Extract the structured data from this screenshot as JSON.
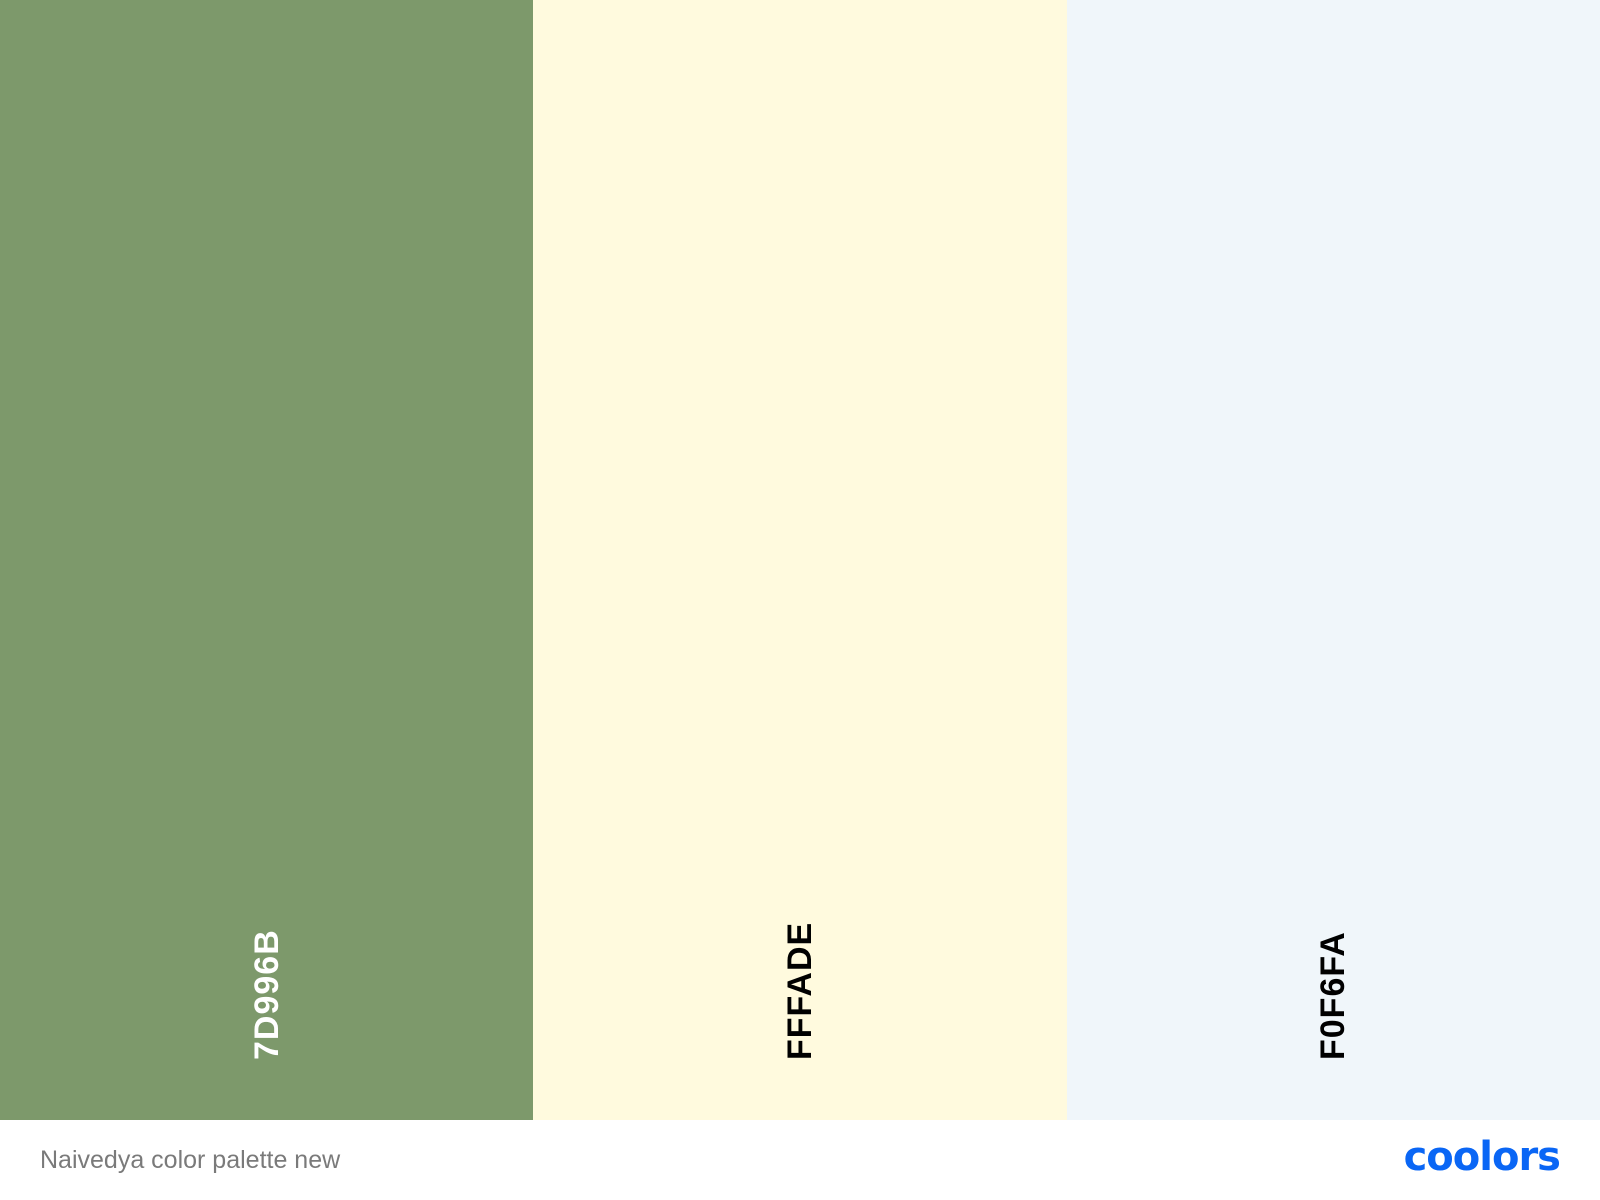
{
  "swatches": [
    {
      "hex": "7D996B",
      "color": "#7D996B",
      "text_color": "#ffffff"
    },
    {
      "hex": "FFFADE",
      "color": "#FFFADE",
      "text_color": "#000000"
    },
    {
      "hex": "F0F6FA",
      "color": "#F0F6FA",
      "text_color": "#000000"
    }
  ],
  "footer": {
    "palette_name": "Naivedya color palette new",
    "brand": "coolors",
    "brand_color": "#0a66f5"
  }
}
